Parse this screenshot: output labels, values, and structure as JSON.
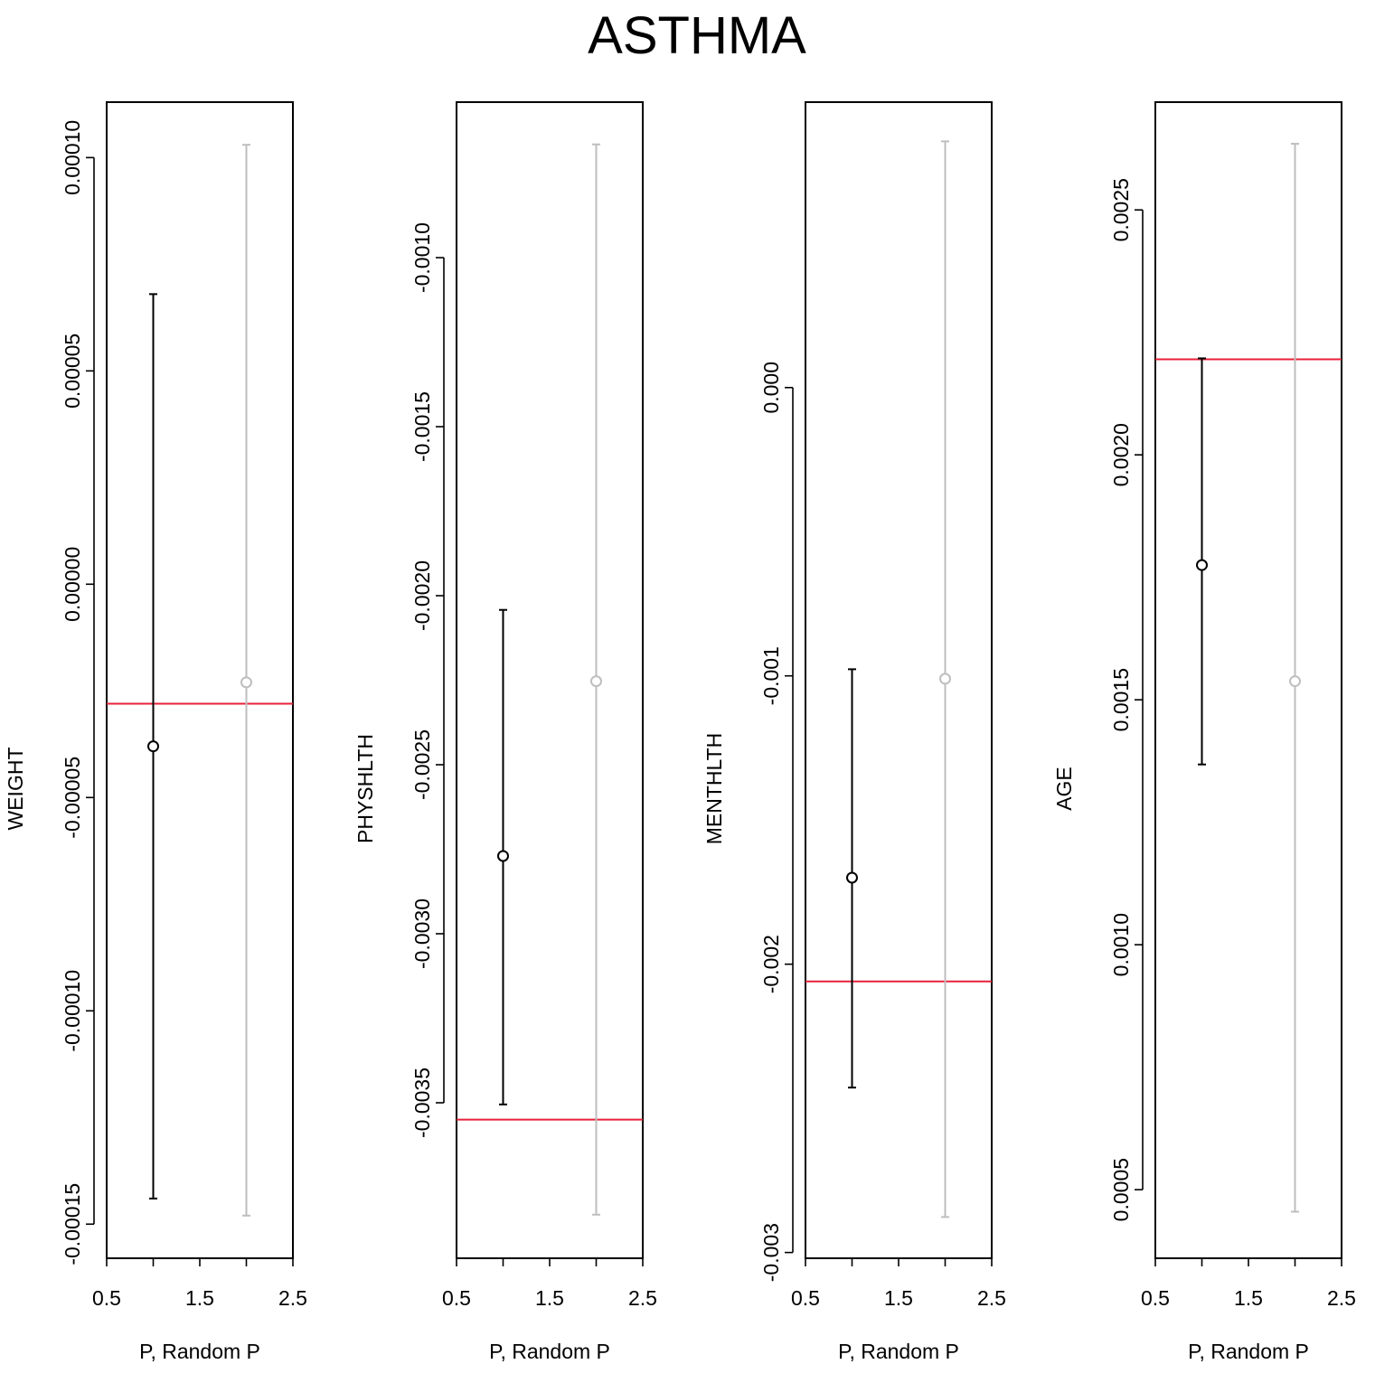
{
  "title": "ASTHMA",
  "colors": {
    "p_series": "#000000",
    "random_series": "#bebebe",
    "reference_line": "#e8203a"
  },
  "chart_data": [
    {
      "type": "errorbar",
      "ylabel": "WEIGHT",
      "xlabel": "P, Random P",
      "xlim": [
        0.5,
        2.5
      ],
      "x_ticks": [
        0.5,
        1.5,
        2.5
      ],
      "x_tick_labels": [
        "0.5",
        "1.5",
        "2.5"
      ],
      "ylim": [
        -0.000158,
        0.000113
      ],
      "y_ticks": [
        0.0001,
        5e-05,
        0.0,
        -5e-05,
        -0.0001,
        -0.00015
      ],
      "y_tick_labels": [
        "0.00010",
        "0.00005",
        "0.00000",
        "-0.00005",
        "-0.00010",
        "-0.00015"
      ],
      "reference_line": -2.8e-05,
      "series": [
        {
          "x": 1,
          "y": -3.8e-05,
          "low": -0.000144,
          "high": 6.8e-05,
          "color": "#000000"
        },
        {
          "x": 2,
          "y": -2.3e-05,
          "low": -0.000148,
          "high": 0.000103,
          "color": "#bebebe"
        }
      ]
    },
    {
      "type": "errorbar",
      "ylabel": "PHYSHLTH",
      "xlabel": "P, Random P",
      "xlim": [
        0.5,
        2.5
      ],
      "x_ticks": [
        0.5,
        1.5,
        2.5
      ],
      "x_tick_labels": [
        "0.5",
        "1.5",
        "2.5"
      ],
      "ylim": [
        -0.00396,
        -0.00054
      ],
      "y_ticks": [
        -0.001,
        -0.0015,
        -0.002,
        -0.0025,
        -0.003,
        -0.0035
      ],
      "y_tick_labels": [
        "-0.0010",
        "-0.0015",
        "-0.0020",
        "-0.0025",
        "-0.0030",
        "-0.0035"
      ],
      "reference_line": -0.00355,
      "series": [
        {
          "x": 1,
          "y": -0.00277,
          "low": -0.003505,
          "high": -0.002042,
          "color": "#000000"
        },
        {
          "x": 2,
          "y": -0.002253,
          "low": -0.003831,
          "high": -0.000665,
          "color": "#bebebe"
        }
      ]
    },
    {
      "type": "errorbar",
      "ylabel": "MENTHLTH",
      "xlabel": "P, Random P",
      "xlim": [
        0.5,
        2.5
      ],
      "x_ticks": [
        0.5,
        1.5,
        2.5
      ],
      "x_tick_labels": [
        "0.5",
        "1.5",
        "2.5"
      ],
      "ylim": [
        -0.00302,
        0.00099
      ],
      "y_ticks": [
        0.0,
        -0.001,
        -0.002,
        -0.003
      ],
      "y_tick_labels": [
        "0.000",
        "-0.001",
        "-0.002",
        "-0.003"
      ],
      "reference_line": -0.00206,
      "series": [
        {
          "x": 1,
          "y": -0.0017,
          "low": -0.002428,
          "high": -0.000977,
          "color": "#000000"
        },
        {
          "x": 2,
          "y": -0.00101,
          "low": -0.002877,
          "high": 0.000854,
          "color": "#bebebe"
        }
      ]
    },
    {
      "type": "errorbar",
      "ylabel": "AGE",
      "xlabel": "P, Random P",
      "xlim": [
        0.5,
        2.5
      ],
      "x_ticks": [
        0.5,
        1.5,
        2.5
      ],
      "x_tick_labels": [
        "0.5",
        "1.5",
        "2.5"
      ],
      "ylim": [
        0.00036,
        0.00272
      ],
      "y_ticks": [
        0.0025,
        0.002,
        0.0015,
        0.001,
        0.0005
      ],
      "y_tick_labels": [
        "0.0025",
        "0.0020",
        "0.0015",
        "0.0010",
        "0.0005"
      ],
      "reference_line": 0.002195,
      "series": [
        {
          "x": 1,
          "y": 0.001775,
          "low": 0.001368,
          "high": 0.002197,
          "color": "#000000"
        },
        {
          "x": 2,
          "y": 0.001538,
          "low": 0.000455,
          "high": 0.002635,
          "color": "#bebebe"
        }
      ]
    }
  ]
}
